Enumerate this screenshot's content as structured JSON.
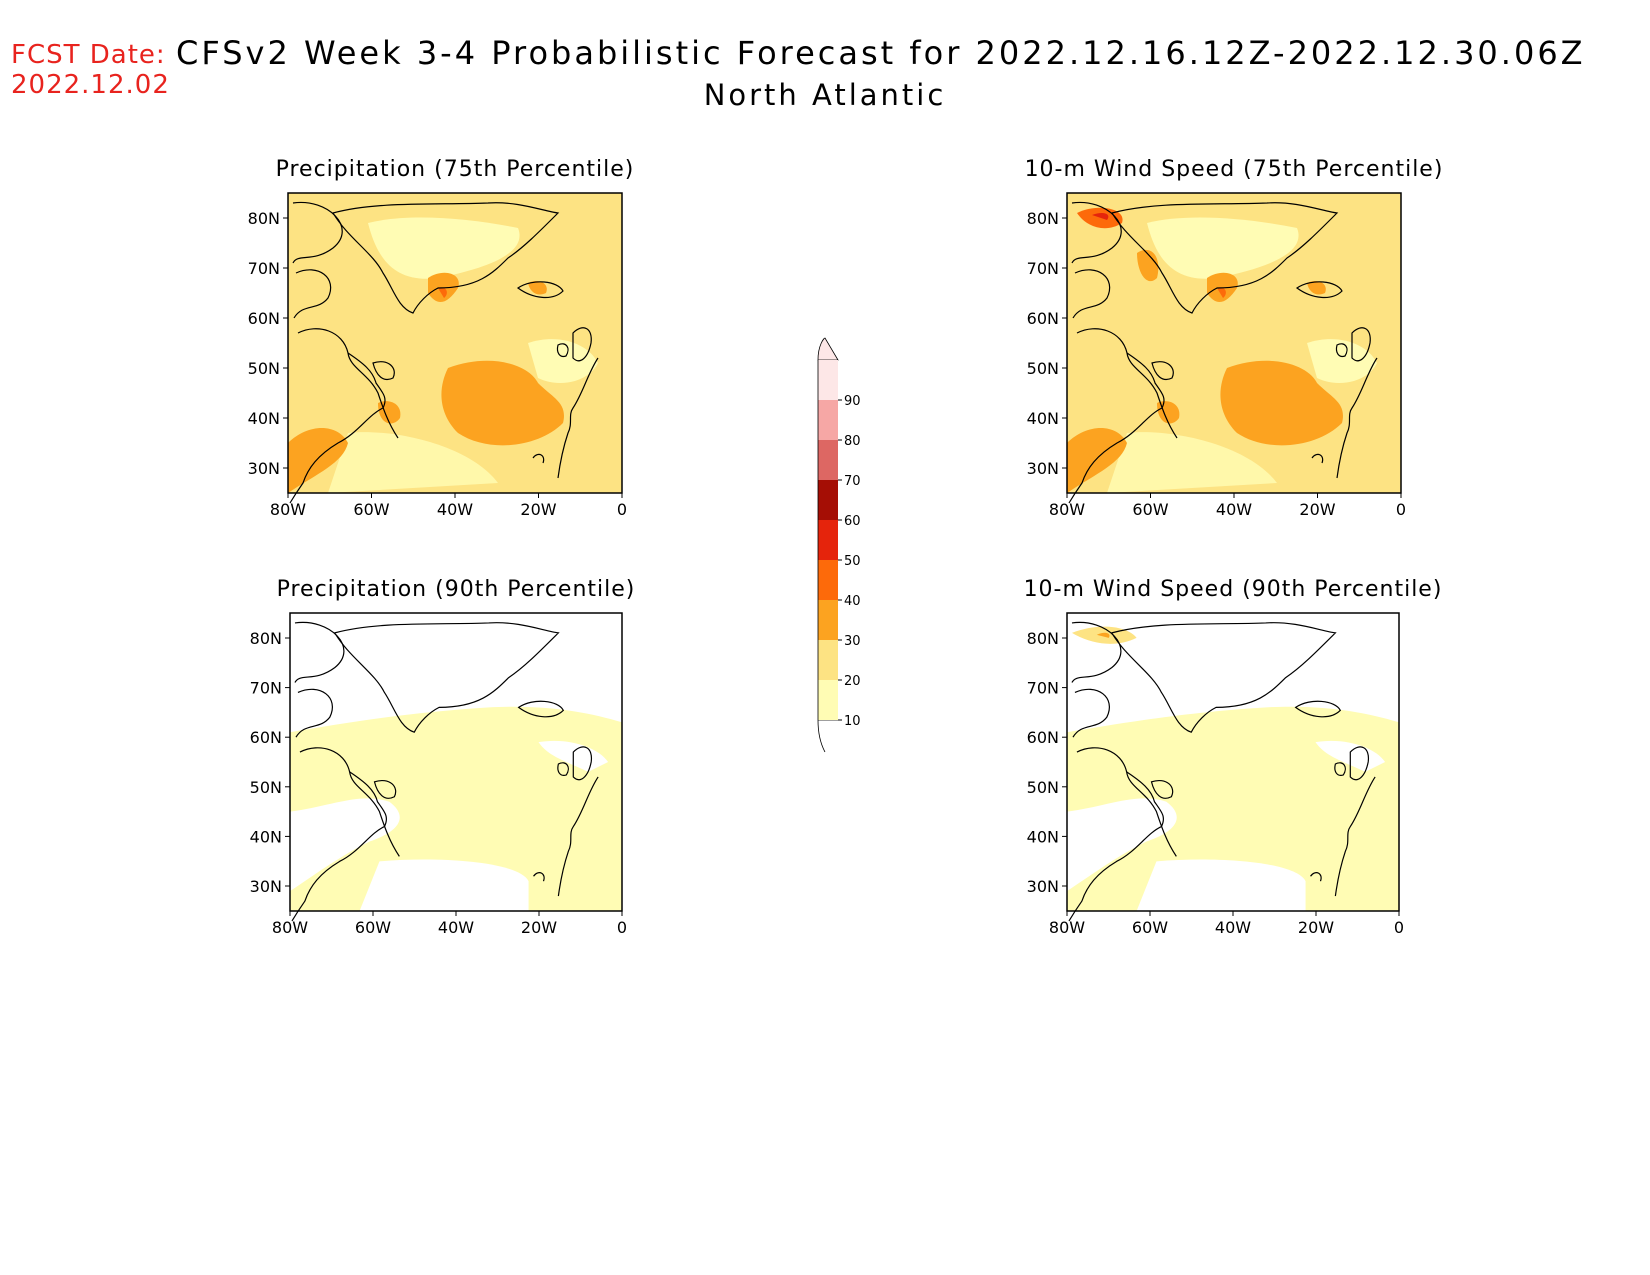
{
  "header": {
    "fcst_date_label": "FCST Date:",
    "fcst_date_value": "2022.12.02",
    "title": "CFSv2 Week 3-4 Probabilistic Forecast for 2022.12.16.12Z-2022.12.30.06Z",
    "region": "North Atlantic"
  },
  "panels": [
    {
      "title": "Precipitation (75th Percentile)",
      "intensity": "high"
    },
    {
      "title": "10-m Wind Speed (75th Percentile)",
      "intensity": "high"
    },
    {
      "title": "Precipitation (90th Percentile)",
      "intensity": "low"
    },
    {
      "title": "10-m Wind Speed (90th Percentile)",
      "intensity": "low"
    }
  ],
  "axes": {
    "lat_labels": [
      "80N",
      "70N",
      "60N",
      "50N",
      "40N",
      "30N"
    ],
    "lon_labels": [
      "80W",
      "60W",
      "40W",
      "20W",
      "0"
    ]
  },
  "colorbar": {
    "levels": [
      "10",
      "20",
      "30",
      "40",
      "50",
      "60",
      "70",
      "80",
      "90"
    ],
    "colors": [
      "#fffcb4",
      "#fde383",
      "#fca320",
      "#fd6a0a",
      "#e5240c",
      "#a50e05",
      "#dd6763",
      "#f6a7a5",
      "#fde7e7"
    ]
  }
}
